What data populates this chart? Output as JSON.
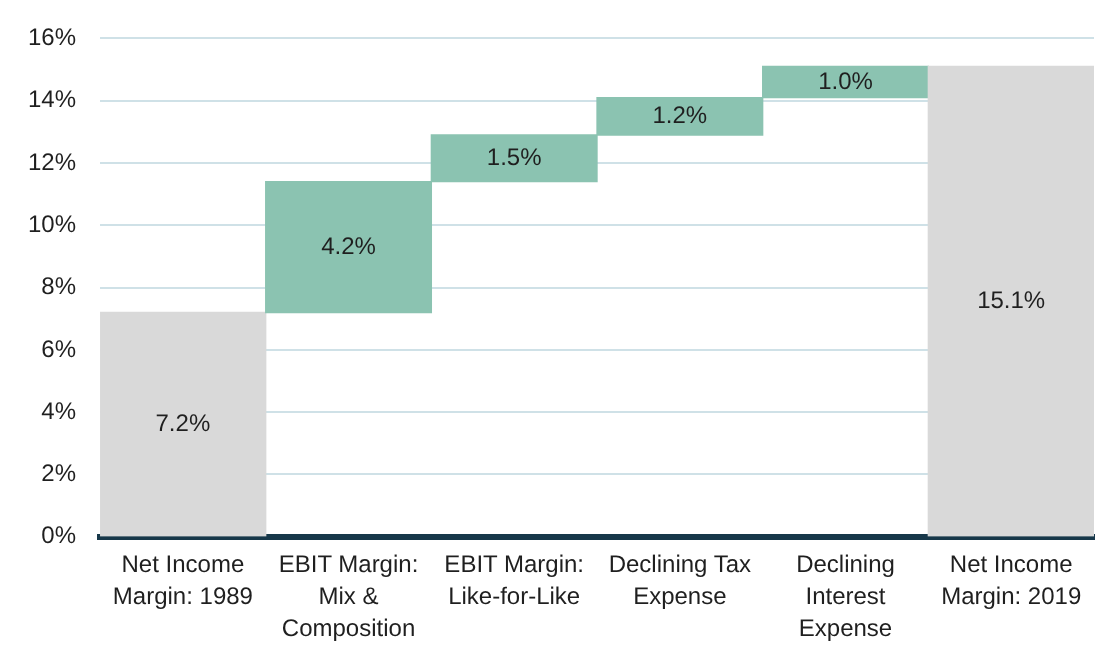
{
  "chart_data": {
    "type": "bar",
    "categories": [
      "Net Income Margin: 1989",
      "EBIT Margin: Mix & Composition",
      "EBIT Margin: Like-for-Like",
      "Declining Tax Expense",
      "Declining Interest Expense",
      "Net Income Margin: 2019"
    ],
    "values": [
      7.2,
      4.2,
      1.5,
      1.2,
      1.0,
      15.1
    ],
    "base": [
      0,
      7.2,
      11.4,
      12.9,
      14.1,
      0
    ],
    "colors": [
      "#d9d9d9",
      "#8bc3b1",
      "#8bc3b1",
      "#8bc3b1",
      "#8bc3b1",
      "#d9d9d9"
    ],
    "value_labels": [
      "7.2%",
      "4.2%",
      "1.5%",
      "1.2%",
      "1.0%",
      "15.1%"
    ],
    "ylim": [
      0,
      16
    ],
    "yticks": [
      {
        "value": 0,
        "label": "0%"
      },
      {
        "value": 2,
        "label": "2%"
      },
      {
        "value": 4,
        "label": "4%"
      },
      {
        "value": 6,
        "label": "6%"
      },
      {
        "value": 8,
        "label": "8%"
      },
      {
        "value": 10,
        "label": "10%"
      },
      {
        "value": 12,
        "label": "12%"
      },
      {
        "value": 14,
        "label": "14%"
      },
      {
        "value": 16,
        "label": "16%"
      }
    ],
    "grid": "y"
  }
}
